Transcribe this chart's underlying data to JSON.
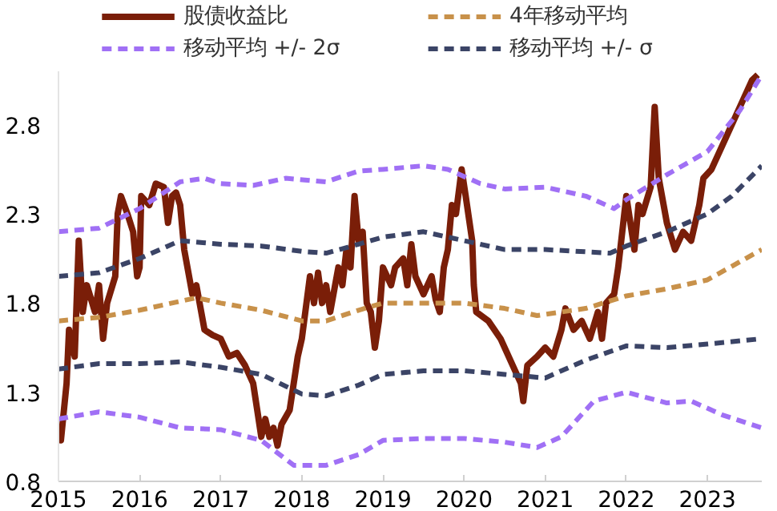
{
  "chart_data": {
    "type": "line",
    "xlim": [
      2015,
      2023.67
    ],
    "ylim": [
      0.8,
      3.1
    ],
    "xticks": [
      2015,
      2016,
      2017,
      2018,
      2019,
      2020,
      2021,
      2022,
      2023
    ],
    "yticks": [
      0.8,
      1.3,
      1.8,
      2.3,
      2.8
    ],
    "grid": false,
    "legend": "top",
    "marker": "none",
    "series": [
      {
        "name": "股债收益比",
        "color": "#7a1e08",
        "line_style": "solid",
        "x": [
          2015.0,
          2015.03,
          2015.1,
          2015.13,
          2015.2,
          2015.25,
          2015.3,
          2015.35,
          2015.45,
          2015.5,
          2015.55,
          2015.6,
          2015.7,
          2015.73,
          2015.77,
          2015.85,
          2015.92,
          2015.97,
          2016.0,
          2016.02,
          2016.12,
          2016.2,
          2016.3,
          2016.35,
          2016.4,
          2016.45,
          2016.5,
          2016.55,
          2016.65,
          2016.7,
          2016.8,
          2016.9,
          2017.0,
          2017.1,
          2017.2,
          2017.3,
          2017.4,
          2017.45,
          2017.5,
          2017.55,
          2017.6,
          2017.65,
          2017.7,
          2017.75,
          2017.85,
          2017.9,
          2017.95,
          2018.0,
          2018.1,
          2018.15,
          2018.2,
          2018.25,
          2018.3,
          2018.35,
          2018.45,
          2018.5,
          2018.55,
          2018.6,
          2018.65,
          2018.7,
          2018.75,
          2018.8,
          2018.85,
          2018.9,
          2018.95,
          2019.0,
          2019.05,
          2019.1,
          2019.15,
          2019.25,
          2019.3,
          2019.35,
          2019.4,
          2019.5,
          2019.6,
          2019.65,
          2019.7,
          2019.75,
          2019.8,
          2019.85,
          2019.9,
          2019.97,
          2020.02,
          2020.1,
          2020.12,
          2020.15,
          2020.3,
          2020.45,
          2020.6,
          2020.7,
          2020.73,
          2020.78,
          2020.9,
          2021.0,
          2021.1,
          2021.2,
          2021.25,
          2021.35,
          2021.45,
          2021.55,
          2021.65,
          2021.7,
          2021.75,
          2021.85,
          2021.9,
          2021.95,
          2022.0,
          2022.05,
          2022.1,
          2022.15,
          2022.2,
          2022.3,
          2022.35,
          2022.4,
          2022.5,
          2022.6,
          2022.7,
          2022.8,
          2022.9,
          2022.95,
          2023.05,
          2023.15,
          2023.25,
          2023.35,
          2023.45,
          2023.55,
          2023.62
        ],
        "values": [
          1.1,
          1.03,
          1.35,
          1.65,
          1.5,
          2.15,
          1.75,
          1.9,
          1.75,
          1.9,
          1.6,
          1.8,
          1.95,
          2.3,
          2.4,
          2.3,
          2.2,
          1.95,
          2.0,
          2.4,
          2.35,
          2.47,
          2.45,
          2.25,
          2.4,
          2.42,
          2.35,
          2.1,
          1.85,
          1.9,
          1.65,
          1.62,
          1.6,
          1.5,
          1.52,
          1.45,
          1.35,
          1.2,
          1.05,
          1.15,
          1.05,
          1.1,
          1.0,
          1.12,
          1.2,
          1.35,
          1.5,
          1.6,
          1.95,
          1.8,
          1.97,
          1.8,
          1.9,
          1.75,
          2.0,
          1.9,
          2.1,
          2.0,
          2.4,
          2.15,
          2.2,
          1.8,
          1.75,
          1.55,
          1.7,
          2.0,
          1.95,
          1.9,
          2.0,
          2.05,
          1.9,
          2.13,
          1.95,
          1.85,
          1.95,
          1.82,
          1.75,
          2.0,
          2.1,
          2.35,
          2.3,
          2.55,
          2.4,
          2.15,
          1.9,
          1.75,
          1.7,
          1.6,
          1.45,
          1.35,
          1.25,
          1.45,
          1.5,
          1.55,
          1.5,
          1.65,
          1.77,
          1.65,
          1.7,
          1.6,
          1.75,
          1.6,
          1.8,
          1.85,
          2.0,
          2.2,
          2.4,
          2.25,
          2.1,
          2.35,
          2.3,
          2.45,
          2.9,
          2.5,
          2.25,
          2.1,
          2.2,
          2.15,
          2.35,
          2.5,
          2.55,
          2.65,
          2.75,
          2.85,
          2.95,
          3.05,
          3.08
        ]
      },
      {
        "name": "4年移动平均",
        "color": "#c8914a",
        "line_style": "dashed",
        "x": [
          2015,
          2015.5,
          2016,
          2016.5,
          2016.7,
          2017,
          2017.5,
          2018,
          2018.3,
          2018.7,
          2019,
          2019.5,
          2020,
          2020.5,
          2020.9,
          2021.5,
          2022,
          2022.5,
          2023,
          2023.67
        ],
        "values": [
          1.7,
          1.72,
          1.76,
          1.81,
          1.83,
          1.8,
          1.76,
          1.7,
          1.7,
          1.76,
          1.8,
          1.8,
          1.8,
          1.77,
          1.73,
          1.77,
          1.84,
          1.88,
          1.93,
          2.1
        ]
      },
      {
        "name": "移动平均 +/- 2σ",
        "color": "#a070f5",
        "line_style": "dashed",
        "x": [
          2015,
          2015.5,
          2016,
          2016.5,
          2016.8,
          2017,
          2017.4,
          2017.8,
          2018.3,
          2018.7,
          2019,
          2019.5,
          2019.8,
          2020.2,
          2020.5,
          2021,
          2021.5,
          2021.85,
          2022,
          2022.5,
          2023,
          2023.4,
          2023.67
        ],
        "values": [
          2.2,
          2.22,
          2.33,
          2.48,
          2.5,
          2.47,
          2.46,
          2.5,
          2.48,
          2.54,
          2.55,
          2.57,
          2.55,
          2.47,
          2.44,
          2.45,
          2.4,
          2.33,
          2.38,
          2.52,
          2.65,
          2.88,
          3.08
        ]
      },
      {
        "name": "移动平均 +/- σ",
        "color": "#3b4466",
        "line_style": "dashed",
        "x": [
          2015,
          2015.5,
          2016,
          2016.5,
          2017,
          2017.5,
          2018,
          2018.3,
          2018.7,
          2019,
          2019.5,
          2020,
          2020.5,
          2021,
          2021.8,
          2022,
          2022.5,
          2023,
          2023.3,
          2023.67
        ],
        "values": [
          1.95,
          1.97,
          2.05,
          2.15,
          2.13,
          2.12,
          2.09,
          2.08,
          2.13,
          2.17,
          2.2,
          2.15,
          2.1,
          2.1,
          2.08,
          2.12,
          2.2,
          2.3,
          2.4,
          2.57
        ]
      },
      {
        "color": "#3b4466",
        "line_style": "dashed",
        "x": [
          2015,
          2015.5,
          2016,
          2016.5,
          2017,
          2017.5,
          2018,
          2018.3,
          2018.7,
          2019,
          2019.5,
          2020,
          2020.5,
          2021,
          2021.5,
          2022,
          2022.5,
          2023,
          2023.67
        ],
        "values": [
          1.43,
          1.46,
          1.46,
          1.47,
          1.44,
          1.4,
          1.29,
          1.28,
          1.34,
          1.4,
          1.42,
          1.42,
          1.4,
          1.38,
          1.48,
          1.56,
          1.55,
          1.57,
          1.6
        ]
      },
      {
        "color": "#a070f5",
        "line_style": "dashed",
        "x": [
          2015,
          2015.5,
          2016,
          2016.5,
          2017,
          2017.5,
          2017.9,
          2018.3,
          2018.7,
          2019,
          2019.5,
          2020,
          2020.5,
          2020.9,
          2021.2,
          2021.6,
          2022,
          2022.5,
          2022.8,
          2023.2,
          2023.67
        ],
        "values": [
          1.15,
          1.19,
          1.16,
          1.1,
          1.09,
          1.03,
          0.89,
          0.89,
          0.95,
          1.03,
          1.04,
          1.04,
          1.02,
          0.99,
          1.05,
          1.25,
          1.3,
          1.24,
          1.25,
          1.17,
          1.1
        ]
      }
    ]
  }
}
